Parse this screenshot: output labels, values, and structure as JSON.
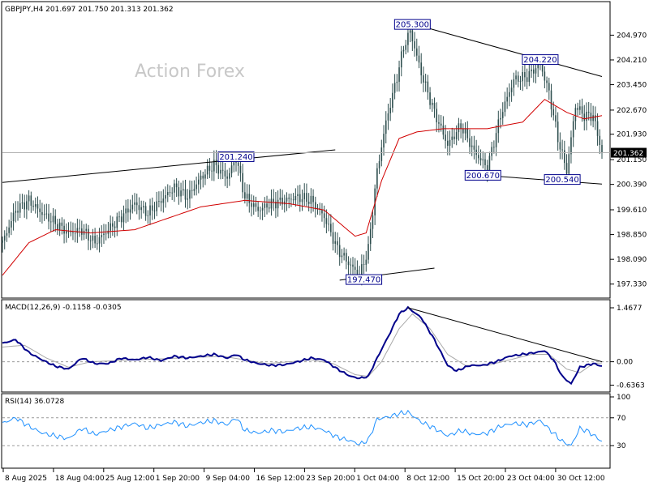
{
  "chart_data": [
    {
      "type": "candlestick",
      "title": "GBPJPY,H4  201.697 201.750 201.313 201.362",
      "watermark": "Action Forex",
      "ylim": [
        197.0,
        205.9
      ],
      "ytick_values": [
        197.33,
        198.09,
        198.85,
        199.61,
        200.39,
        201.15,
        201.93,
        202.67,
        203.45,
        204.21,
        204.97
      ],
      "ytick_labels": [
        "197.330",
        "198.090",
        "198.850",
        "199.610",
        "200.390",
        "201.150",
        "201.930",
        "202.670",
        "203.450",
        "204.210",
        "204.970"
      ],
      "current_price": {
        "value": 201.362,
        "label": "201.362"
      },
      "x_labels": [
        "8 Aug 2025",
        "18 Aug 04:00",
        "25 Aug 12:00",
        "1 Sep 20:00",
        "9 Sep 04:00",
        "16 Sep 12:00",
        "23 Sep 20:00",
        "1 Oct 04:00",
        "8 Oct 12:00",
        "15 Oct 20:00",
        "23 Oct 04:00",
        "30 Oct 12:00"
      ],
      "close_keypoints": [
        [
          0,
          198.6
        ],
        [
          6,
          199.6
        ],
        [
          12,
          199.9
        ],
        [
          18,
          199.5
        ],
        [
          24,
          199.2
        ],
        [
          30,
          198.9
        ],
        [
          36,
          199.0
        ],
        [
          42,
          198.6
        ],
        [
          48,
          199.0
        ],
        [
          54,
          199.4
        ],
        [
          60,
          199.8
        ],
        [
          66,
          199.5
        ],
        [
          72,
          199.9
        ],
        [
          78,
          200.3
        ],
        [
          84,
          200.0
        ],
        [
          90,
          200.6
        ],
        [
          96,
          201.0
        ],
        [
          102,
          200.6
        ],
        [
          106,
          201.2
        ],
        [
          110,
          200.0
        ],
        [
          116,
          199.6
        ],
        [
          122,
          199.8
        ],
        [
          128,
          199.9
        ],
        [
          134,
          200.0
        ],
        [
          140,
          199.9
        ],
        [
          146,
          199.4
        ],
        [
          152,
          198.4
        ],
        [
          158,
          197.9
        ],
        [
          162,
          197.6
        ],
        [
          166,
          198.4
        ],
        [
          170,
          200.8
        ],
        [
          174,
          202.3
        ],
        [
          178,
          203.4
        ],
        [
          182,
          204.6
        ],
        [
          185,
          205.1
        ],
        [
          190,
          203.8
        ],
        [
          196,
          202.6
        ],
        [
          202,
          201.6
        ],
        [
          208,
          202.2
        ],
        [
          214,
          201.4
        ],
        [
          220,
          200.9
        ],
        [
          226,
          202.5
        ],
        [
          232,
          203.6
        ],
        [
          238,
          203.7
        ],
        [
          244,
          204.1
        ],
        [
          248,
          203.2
        ],
        [
          252,
          201.8
        ],
        [
          256,
          200.8
        ],
        [
          260,
          202.8
        ],
        [
          264,
          202.5
        ],
        [
          268,
          202.5
        ],
        [
          272,
          201.36
        ]
      ],
      "ma_keypoints": [
        [
          0,
          197.6
        ],
        [
          12,
          198.6
        ],
        [
          24,
          199.0
        ],
        [
          40,
          198.9
        ],
        [
          60,
          199.0
        ],
        [
          90,
          199.7
        ],
        [
          110,
          199.9
        ],
        [
          130,
          199.8
        ],
        [
          146,
          199.6
        ],
        [
          160,
          198.8
        ],
        [
          165,
          198.9
        ],
        [
          172,
          200.5
        ],
        [
          180,
          201.8
        ],
        [
          188,
          202.0
        ],
        [
          200,
          202.1
        ],
        [
          220,
          202.1
        ],
        [
          236,
          202.3
        ],
        [
          246,
          203.0
        ],
        [
          256,
          202.6
        ],
        [
          264,
          202.4
        ],
        [
          272,
          202.5
        ]
      ],
      "trendlines": [
        {
          "points": [
            [
              0,
              200.45
            ],
            [
              151,
              201.45
            ]
          ]
        },
        {
          "points": [
            [
              187,
              205.3
            ],
            [
              272,
              203.7
            ]
          ]
        },
        {
          "points": [
            [
              218,
              200.67
            ],
            [
              272,
              200.4
            ]
          ]
        },
        {
          "points": [
            [
              153,
              197.45
            ],
            [
              196,
              197.82
            ]
          ]
        }
      ],
      "price_labels": [
        {
          "x": 106,
          "y": 201.24,
          "label": "201.240"
        },
        {
          "x": 186,
          "y": 205.3,
          "label": "205.300"
        },
        {
          "x": 244,
          "y": 204.22,
          "label": "204.220"
        },
        {
          "x": 218,
          "y": 200.67,
          "label": "200.670"
        },
        {
          "x": 254,
          "y": 200.54,
          "label": "200.540"
        },
        {
          "x": 164,
          "y": 197.47,
          "label": "197.470"
        }
      ]
    },
    {
      "type": "line",
      "title": "MACD(12,26,9) -0.1158 -0.0305",
      "ylim": [
        -0.78,
        1.6
      ],
      "ytick_values": [
        1.4677,
        0.0,
        -0.6363
      ],
      "ytick_labels": [
        "1.4677",
        "0.00",
        "-0.6363"
      ],
      "macd_keypoints": [
        [
          0,
          0.5
        ],
        [
          6,
          0.6
        ],
        [
          12,
          0.25
        ],
        [
          18,
          0.05
        ],
        [
          24,
          -0.12
        ],
        [
          30,
          -0.2
        ],
        [
          36,
          0.1
        ],
        [
          42,
          -0.05
        ],
        [
          48,
          -0.05
        ],
        [
          54,
          0.1
        ],
        [
          60,
          0.05
        ],
        [
          66,
          0.12
        ],
        [
          72,
          0.03
        ],
        [
          78,
          0.15
        ],
        [
          84,
          0.1
        ],
        [
          90,
          0.15
        ],
        [
          96,
          0.2
        ],
        [
          102,
          0.1
        ],
        [
          106,
          0.2
        ],
        [
          110,
          0.05
        ],
        [
          116,
          -0.05
        ],
        [
          122,
          -0.1
        ],
        [
          128,
          -0.08
        ],
        [
          134,
          0.0
        ],
        [
          140,
          0.1
        ],
        [
          146,
          0.05
        ],
        [
          152,
          -0.2
        ],
        [
          158,
          -0.4
        ],
        [
          162,
          -0.45
        ],
        [
          166,
          -0.4
        ],
        [
          170,
          0.1
        ],
        [
          176,
          0.8
        ],
        [
          180,
          1.3
        ],
        [
          184,
          1.47
        ],
        [
          190,
          1.2
        ],
        [
          196,
          0.6
        ],
        [
          202,
          -0.1
        ],
        [
          206,
          -0.25
        ],
        [
          212,
          -0.1
        ],
        [
          218,
          -0.1
        ],
        [
          224,
          0.0
        ],
        [
          230,
          0.15
        ],
        [
          236,
          0.2
        ],
        [
          242,
          0.25
        ],
        [
          246,
          0.3
        ],
        [
          250,
          0.05
        ],
        [
          254,
          -0.4
        ],
        [
          258,
          -0.6
        ],
        [
          262,
          -0.15
        ],
        [
          268,
          -0.05
        ],
        [
          272,
          -0.12
        ]
      ],
      "signal_keypoints": [
        [
          0,
          0.4
        ],
        [
          10,
          0.45
        ],
        [
          20,
          0.1
        ],
        [
          30,
          -0.15
        ],
        [
          40,
          0.0
        ],
        [
          60,
          0.05
        ],
        [
          80,
          0.1
        ],
        [
          100,
          0.15
        ],
        [
          120,
          -0.05
        ],
        [
          140,
          0.05
        ],
        [
          150,
          -0.05
        ],
        [
          160,
          -0.35
        ],
        [
          166,
          -0.4
        ],
        [
          172,
          0.0
        ],
        [
          180,
          0.9
        ],
        [
          186,
          1.3
        ],
        [
          194,
          0.9
        ],
        [
          202,
          0.2
        ],
        [
          210,
          -0.1
        ],
        [
          220,
          -0.1
        ],
        [
          230,
          0.05
        ],
        [
          240,
          0.2
        ],
        [
          248,
          0.2
        ],
        [
          256,
          -0.2
        ],
        [
          262,
          -0.3
        ],
        [
          268,
          -0.05
        ],
        [
          272,
          -0.03
        ]
      ],
      "trendlines": [
        {
          "points": [
            [
              184,
              1.47
            ],
            [
              272,
              0.0
            ]
          ]
        }
      ]
    },
    {
      "type": "line",
      "title": "RSI(14) 36.0728",
      "ylim": [
        0,
        100
      ],
      "ytick_values": [
        100,
        70,
        30
      ],
      "ytick_labels": [
        "100",
        "70",
        "30"
      ],
      "rsi_keypoints": [
        [
          0,
          62
        ],
        [
          6,
          70
        ],
        [
          12,
          58
        ],
        [
          18,
          48
        ],
        [
          24,
          44
        ],
        [
          30,
          40
        ],
        [
          36,
          55
        ],
        [
          42,
          46
        ],
        [
          48,
          52
        ],
        [
          54,
          57
        ],
        [
          60,
          62
        ],
        [
          66,
          55
        ],
        [
          72,
          60
        ],
        [
          78,
          64
        ],
        [
          84,
          58
        ],
        [
          90,
          63
        ],
        [
          96,
          66
        ],
        [
          102,
          60
        ],
        [
          106,
          70
        ],
        [
          110,
          52
        ],
        [
          116,
          48
        ],
        [
          122,
          52
        ],
        [
          128,
          50
        ],
        [
          134,
          55
        ],
        [
          140,
          57
        ],
        [
          146,
          52
        ],
        [
          152,
          42
        ],
        [
          158,
          37
        ],
        [
          162,
          32
        ],
        [
          166,
          38
        ],
        [
          170,
          68
        ],
        [
          176,
          72
        ],
        [
          180,
          76
        ],
        [
          184,
          78
        ],
        [
          190,
          64
        ],
        [
          196,
          55
        ],
        [
          202,
          44
        ],
        [
          208,
          52
        ],
        [
          214,
          46
        ],
        [
          220,
          48
        ],
        [
          226,
          58
        ],
        [
          232,
          62
        ],
        [
          238,
          60
        ],
        [
          244,
          66
        ],
        [
          250,
          48
        ],
        [
          254,
          36
        ],
        [
          258,
          30
        ],
        [
          262,
          55
        ],
        [
          266,
          50
        ],
        [
          272,
          36
        ]
      ]
    }
  ],
  "colors": {
    "candle": "#2f4f4f",
    "ma": "#d10000",
    "macd": "#00008b",
    "macd_signal": "#a8a8a8",
    "rsi": "#1e90ff",
    "trendline": "#000000",
    "label_border": "#00008b",
    "current_price_bg": "#000000",
    "watermark": "#c8c8c8"
  }
}
